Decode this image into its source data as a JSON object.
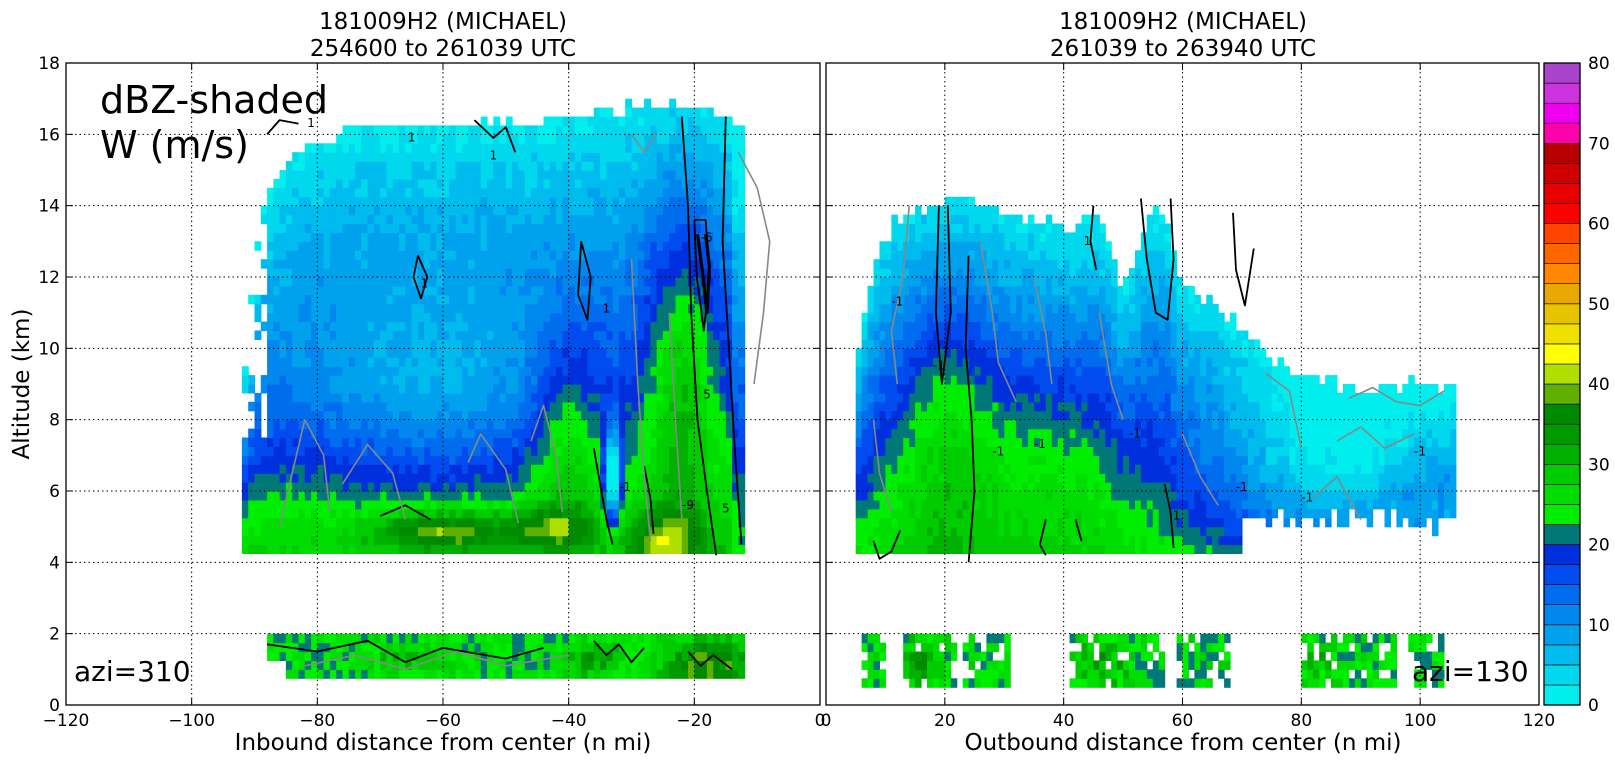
{
  "chart_data": [
    {
      "type": "heatmap",
      "title": "181009H2 (MICHAEL)",
      "subtitle": "254600 to 261039 UTC",
      "xlabel": "Inbound distance from center (n mi)",
      "ylabel": "Altitude (km)",
      "xlim": [
        -120,
        0
      ],
      "ylim": [
        0,
        18
      ],
      "x_ticks": [
        "−120",
        "−100",
        "−80",
        "−60",
        "−40",
        "−20",
        "0"
      ],
      "y_ticks": [
        "0",
        "2",
        "4",
        "6",
        "8",
        "10",
        "12",
        "14",
        "16",
        "18"
      ],
      "grid": true,
      "annotations": [
        "dBZ-shaded",
        "W (m/s)",
        "azi=310"
      ],
      "echo_top_km": [
        {
          "x": -92,
          "y": 7
        },
        {
          "x": -90,
          "y": 11
        },
        {
          "x": -88,
          "y": 14
        },
        {
          "x": -80,
          "y": 15.6
        },
        {
          "x": -70,
          "y": 16
        },
        {
          "x": -60,
          "y": 16
        },
        {
          "x": -50,
          "y": 16.1
        },
        {
          "x": -40,
          "y": 16.3
        },
        {
          "x": -30,
          "y": 16.5
        },
        {
          "x": -20,
          "y": 16.5
        },
        {
          "x": -12,
          "y": 15.7
        },
        {
          "x": -6,
          "y": 15
        },
        {
          "x": -6,
          "y": 12
        },
        {
          "x": -12,
          "y": 10
        }
      ],
      "contour_labels": [
        "1",
        "1",
        "1",
        "1",
        "1",
        "-5",
        "5",
        "-1",
        "-9",
        "5"
      ]
    },
    {
      "type": "heatmap",
      "title": "181009H2 (MICHAEL)",
      "subtitle": "261039 to 263940 UTC",
      "xlabel": "Outbound distance from center (n mi)",
      "xlim": [
        0,
        120
      ],
      "ylim": [
        0,
        18
      ],
      "x_ticks": [
        "0",
        "20",
        "40",
        "60",
        "80",
        "100",
        "120"
      ],
      "grid": true,
      "annotations": [
        "azi=130"
      ],
      "echo_top_km": [
        {
          "x": 5,
          "y": 10
        },
        {
          "x": 7,
          "y": 12
        },
        {
          "x": 12,
          "y": 13.3
        },
        {
          "x": 22,
          "y": 14
        },
        {
          "x": 35,
          "y": 13.6
        },
        {
          "x": 45,
          "y": 13.2
        },
        {
          "x": 55,
          "y": 14
        },
        {
          "x": 60,
          "y": 11.5
        },
        {
          "x": 70,
          "y": 10.5
        },
        {
          "x": 80,
          "y": 9
        },
        {
          "x": 90,
          "y": 8.6
        },
        {
          "x": 105,
          "y": 8.8
        }
      ],
      "contour_labels": [
        "-1",
        "-1",
        "-1",
        "1",
        "-1",
        "-1",
        "-1",
        "1",
        "-1",
        "-1"
      ]
    }
  ],
  "colorbar": {
    "ticks": [
      "0",
      "10",
      "20",
      "30",
      "40",
      "50",
      "60",
      "70",
      "80"
    ],
    "vmin": 0,
    "vmax": 80,
    "step": 2.5,
    "colors": [
      "#00eeee",
      "#00d8ee",
      "#00bbee",
      "#00a2ee",
      "#0088ee",
      "#006cee",
      "#004cee",
      "#0030dd",
      "#007878",
      "#00ee00",
      "#00dd00",
      "#00cc00",
      "#00b000",
      "#009a00",
      "#008a00",
      "#60b000",
      "#b0e000",
      "#ffff00",
      "#f0e000",
      "#e8c400",
      "#e8a800",
      "#ff8800",
      "#ff6600",
      "#ff4400",
      "#ff0000",
      "#e80000",
      "#d00000",
      "#b80000",
      "#ff00aa",
      "#ee00ee",
      "#cc33dd",
      "#aa44cc",
      "#8844aa",
      "#603060",
      "#000000"
    ]
  }
}
